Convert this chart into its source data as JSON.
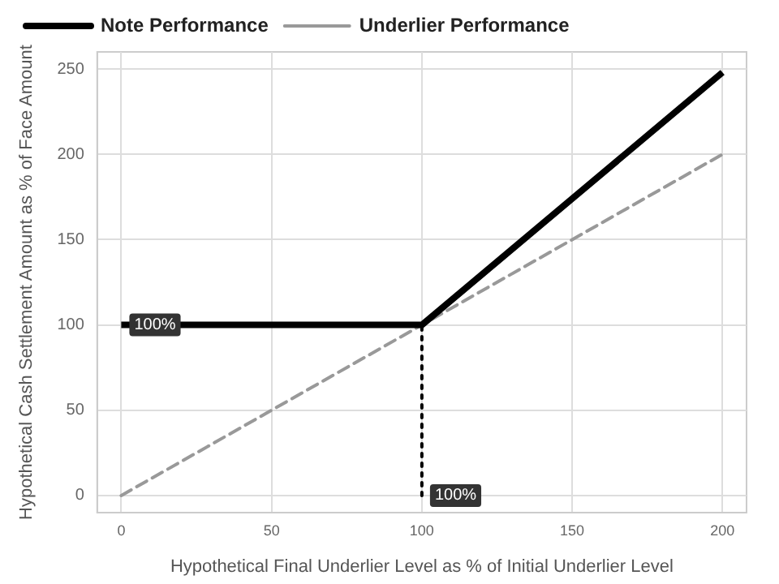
{
  "chart_data": {
    "type": "line",
    "xlabel": "Hypothetical Final Underlier Level as % of Initial Underlier Level",
    "ylabel": "Hypothetical Cash Settlement Amount as % of Face Amount",
    "series": [
      {
        "name": "Note Performance",
        "color": "#000000",
        "x": [
          0,
          100,
          200
        ],
        "values": [
          100,
          100,
          248
        ],
        "line_style": "solid"
      },
      {
        "name": "Underlier Performance",
        "color": "#999999",
        "x": [
          0,
          200
        ],
        "values": [
          0,
          200
        ],
        "line_style": "dashed"
      },
      {
        "color": "#000000",
        "x": [
          100,
          100
        ],
        "values": [
          0,
          100
        ],
        "line_style": "dotted"
      }
    ],
    "xlim": [
      -8,
      208
    ],
    "xticks": [
      0,
      50,
      100,
      150,
      200
    ],
    "ylim": [
      -10,
      260
    ],
    "yticks": [
      0,
      50,
      100,
      150,
      200,
      250
    ],
    "grid": true,
    "legend": "top left",
    "marker": "none",
    "annotations": [
      {
        "text": "100%",
        "x": 0,
        "y": 100
      },
      {
        "text": "100%",
        "x": 100,
        "y": 0
      }
    ]
  }
}
